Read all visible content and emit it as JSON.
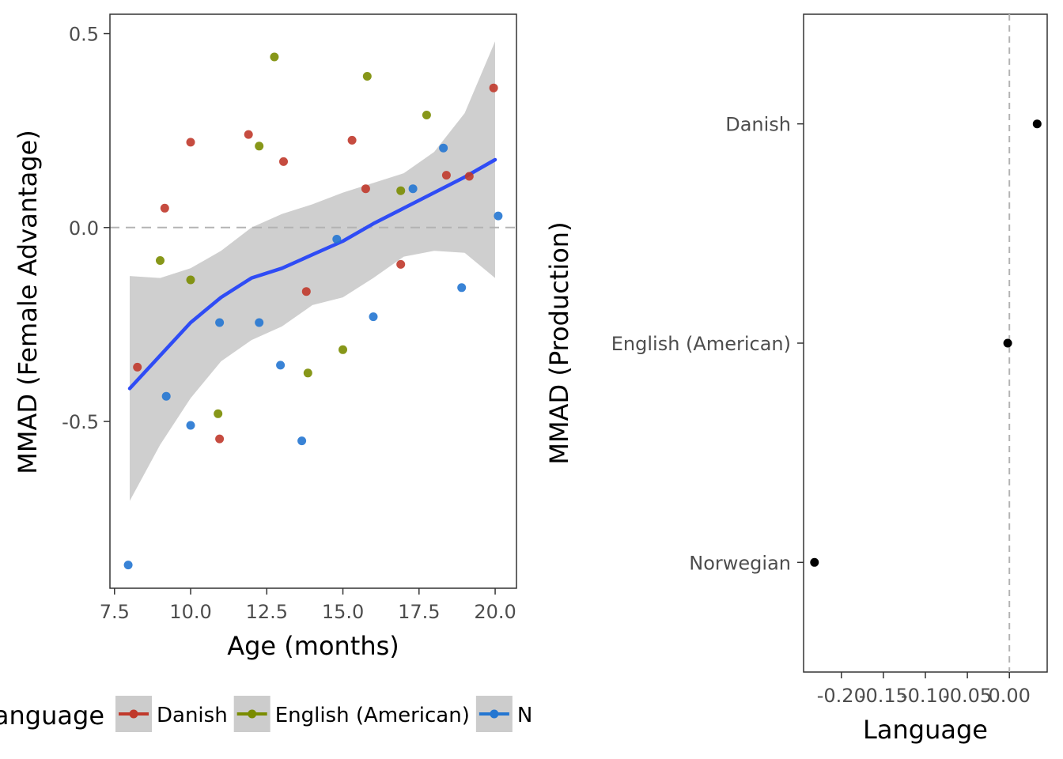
{
  "chart_data": [
    {
      "type": "scatter",
      "xlabel": "Age (months)",
      "ylabel": "MMAD (Female Advantage)",
      "xlim": [
        7.35,
        20.7
      ],
      "ylim": [
        -0.93,
        0.55
      ],
      "x_ticks": [
        7.5,
        10.0,
        12.5,
        15.0,
        17.5,
        20.0
      ],
      "x_tick_labels": [
        "7.5",
        "10.0",
        "12.5",
        "15.0",
        "17.5",
        "20.0"
      ],
      "y_ticks": [
        -0.5,
        0.0,
        0.5
      ],
      "y_tick_labels": [
        "-0.5",
        "0.0",
        "0.5"
      ],
      "reference_line_y": 0.0,
      "grid": false,
      "legend": {
        "title": "Language",
        "position": "bottom",
        "entries": [
          {
            "label": "Danish",
            "color": "#c0392b"
          },
          {
            "label": "English (American)",
            "color": "#7a8c00"
          },
          {
            "label": "Norwegian",
            "color": "#2476d1"
          }
        ]
      },
      "series": [
        {
          "name": "Danish",
          "color": "#c0392b",
          "points": [
            [
              8.25,
              -0.36
            ],
            [
              9.15,
              0.05
            ],
            [
              10.0,
              0.22
            ],
            [
              10.95,
              -0.545
            ],
            [
              11.9,
              0.24
            ],
            [
              13.05,
              0.17
            ],
            [
              13.8,
              -0.165
            ],
            [
              15.3,
              0.225
            ],
            [
              15.75,
              0.1
            ],
            [
              16.9,
              -0.095
            ],
            [
              18.4,
              0.135
            ],
            [
              19.15,
              0.132
            ],
            [
              19.95,
              0.36
            ]
          ]
        },
        {
          "name": "English (American)",
          "color": "#7a8c00",
          "points": [
            [
              9.0,
              -0.085
            ],
            [
              10.0,
              -0.135
            ],
            [
              10.9,
              -0.48
            ],
            [
              12.25,
              0.21
            ],
            [
              12.75,
              0.44
            ],
            [
              13.85,
              -0.375
            ],
            [
              15.0,
              -0.315
            ],
            [
              15.8,
              0.39
            ],
            [
              16.9,
              0.095
            ],
            [
              17.75,
              0.29
            ]
          ]
        },
        {
          "name": "Norwegian",
          "color": "#2476d1",
          "points": [
            [
              7.95,
              -0.87
            ],
            [
              9.2,
              -0.435
            ],
            [
              10.0,
              -0.51
            ],
            [
              10.95,
              -0.245
            ],
            [
              12.25,
              -0.245
            ],
            [
              12.95,
              -0.355
            ],
            [
              13.65,
              -0.55
            ],
            [
              14.8,
              -0.03
            ],
            [
              16.0,
              -0.23
            ],
            [
              17.3,
              0.1
            ],
            [
              18.3,
              0.205
            ],
            [
              18.9,
              -0.155
            ],
            [
              20.1,
              0.03
            ]
          ]
        }
      ],
      "smooth": {
        "color": "#2f4cf5",
        "band_color": "#cfcfcf",
        "x": [
          8.0,
          9.0,
          10.0,
          11.0,
          12.0,
          13.0,
          14.0,
          15.0,
          16.0,
          17.0,
          18.0,
          19.0,
          20.0
        ],
        "fit": [
          -0.415,
          -0.33,
          -0.245,
          -0.18,
          -0.13,
          -0.105,
          -0.07,
          -0.035,
          0.01,
          0.05,
          0.09,
          0.13,
          0.175
        ],
        "lower": [
          -0.705,
          -0.56,
          -0.44,
          -0.345,
          -0.29,
          -0.255,
          -0.2,
          -0.18,
          -0.13,
          -0.075,
          -0.06,
          -0.065,
          -0.13
        ],
        "upper": [
          -0.125,
          -0.13,
          -0.105,
          -0.06,
          0.0,
          0.035,
          0.06,
          0.09,
          0.115,
          0.14,
          0.195,
          0.295,
          0.48
        ]
      }
    },
    {
      "type": "scatter",
      "xlabel": "Language",
      "ylabel": "MMAD (Production)",
      "xlim": [
        -0.245,
        0.045
      ],
      "x_ticks": [
        -0.2,
        -0.15,
        -0.1,
        -0.05,
        0.0
      ],
      "x_tick_labels": [
        "-0.20",
        "-0.15",
        "-0.10",
        "-0.05",
        "0.00"
      ],
      "categories": [
        "Danish",
        "English (American)",
        "Norwegian"
      ],
      "reference_line_x": 0.0,
      "grid": false,
      "points": [
        {
          "category": "Danish",
          "value": 0.033
        },
        {
          "category": "English (American)",
          "value": -0.002
        },
        {
          "category": "Norwegian",
          "value": -0.232
        }
      ]
    }
  ]
}
